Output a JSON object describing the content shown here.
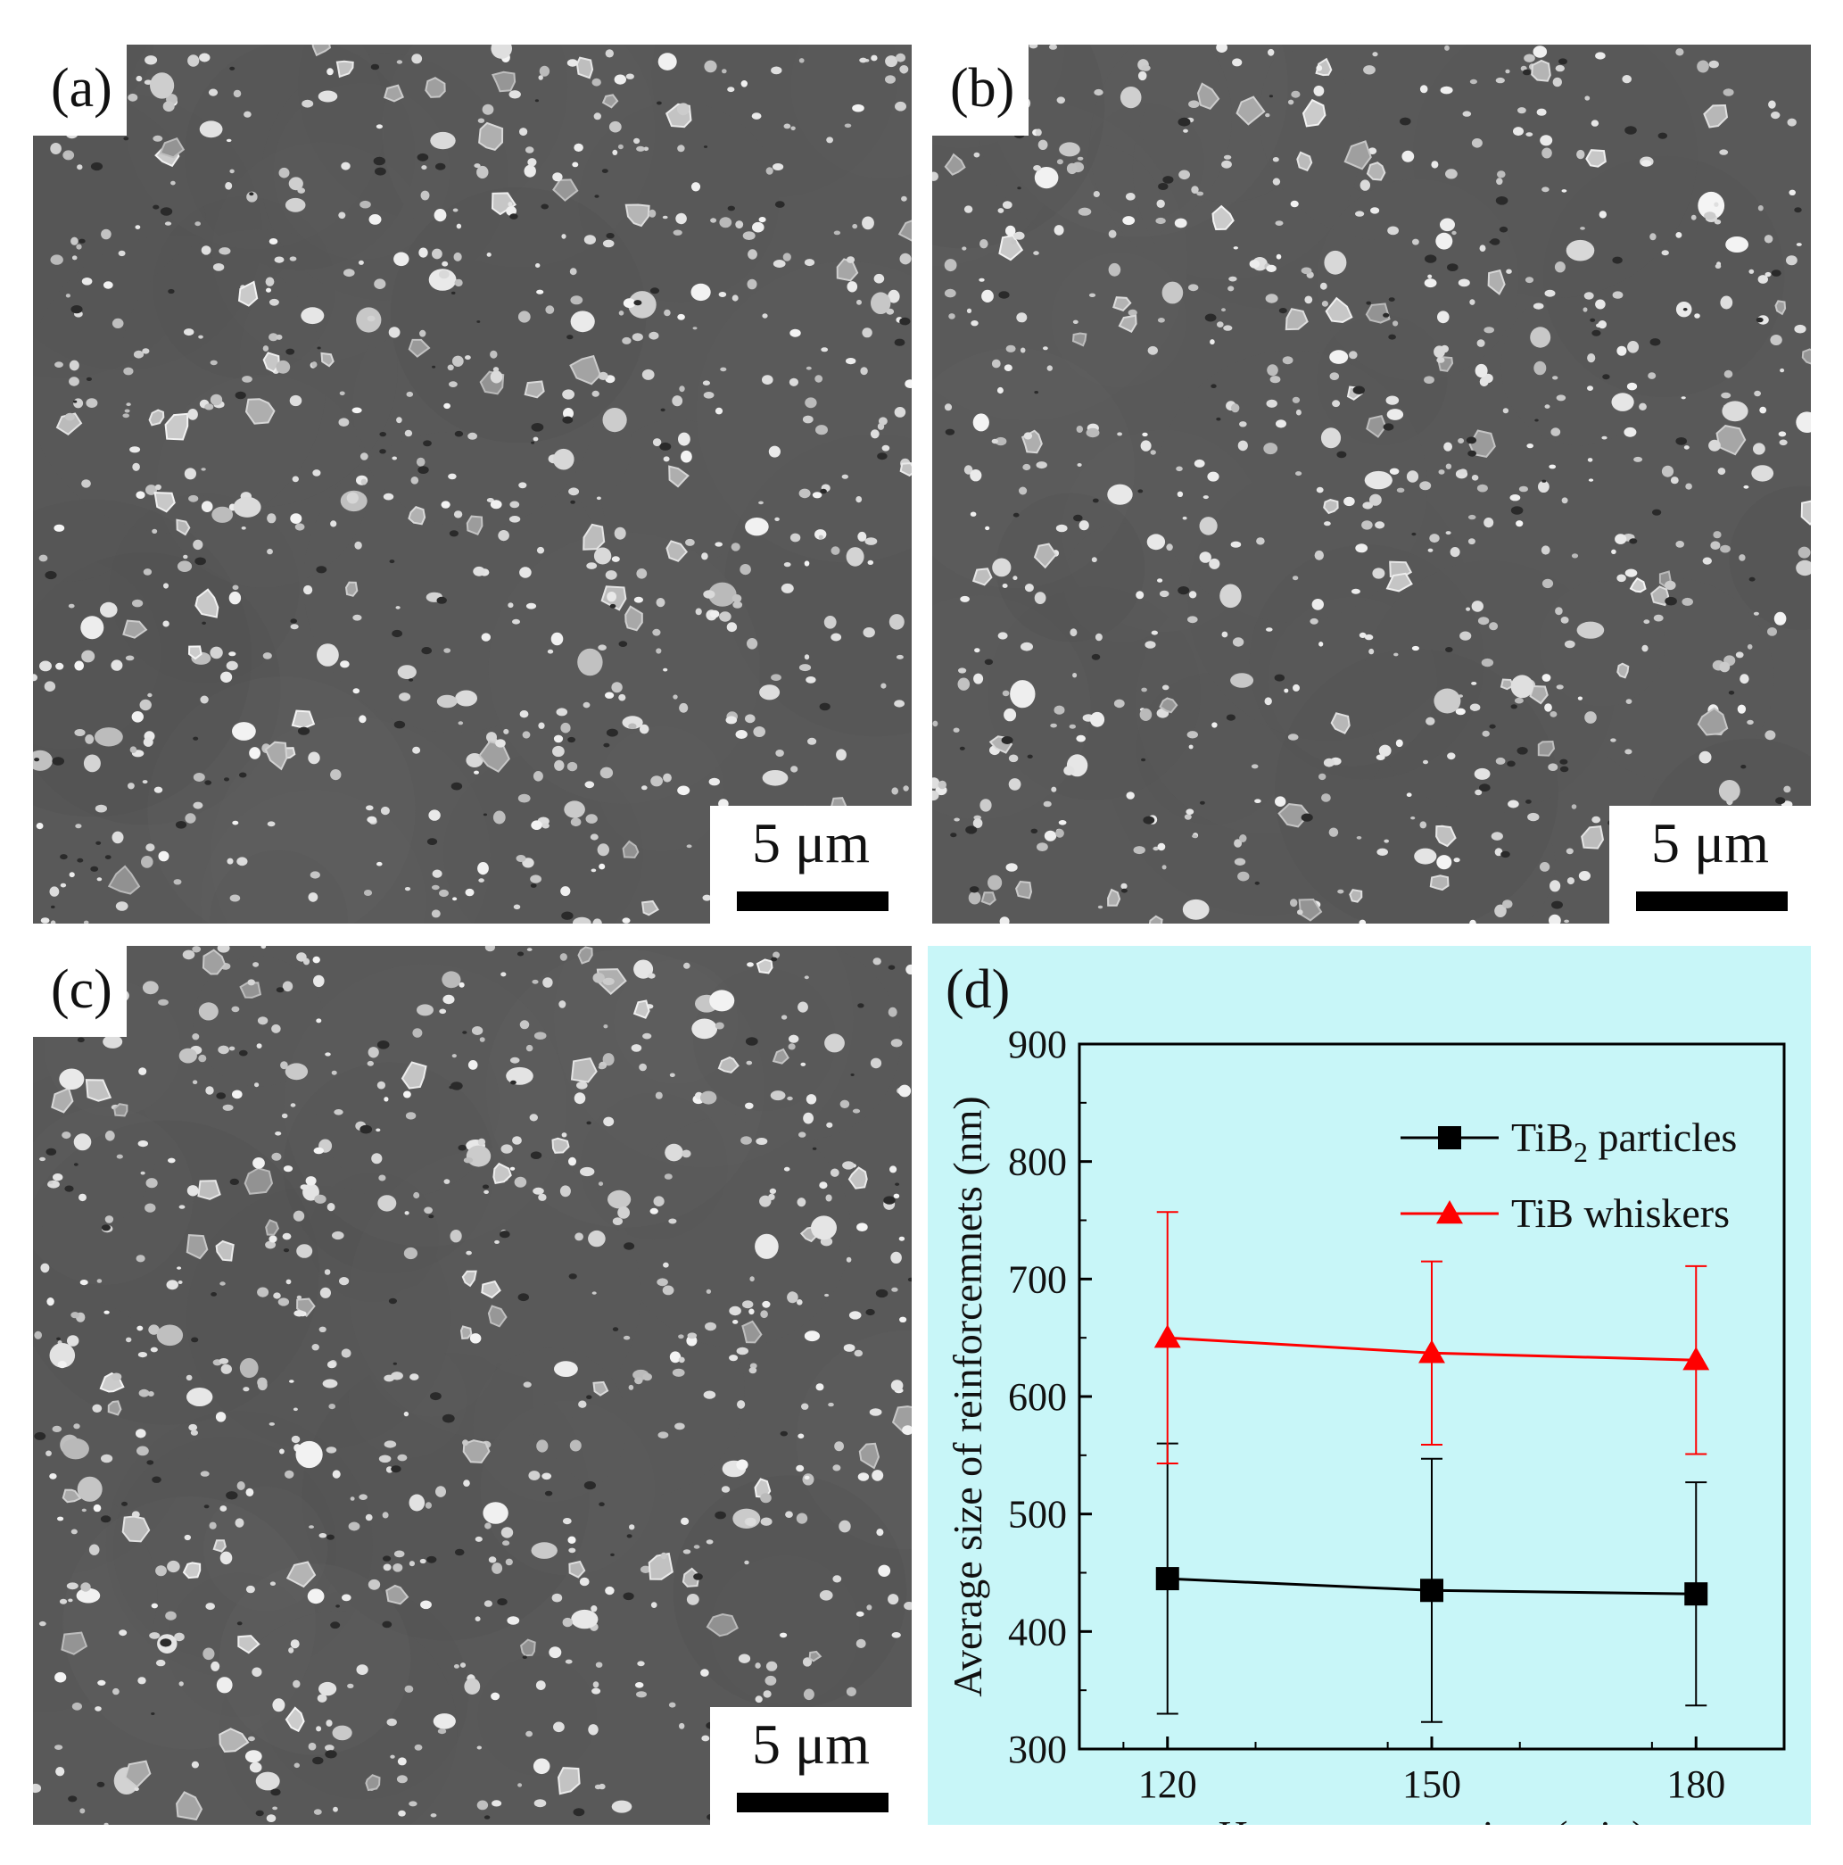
{
  "panels": {
    "a": {
      "label": "(a)",
      "scale_text": "5 μm"
    },
    "b": {
      "label": "(b)",
      "scale_text": "5 μm"
    },
    "c": {
      "label": "(c)",
      "scale_text": "5 μm"
    },
    "d": {
      "label": "(d)"
    }
  },
  "chart_data": {
    "type": "line",
    "xlabel": "Heat treatment time (min)",
    "ylabel": "Average size of reinforcemnets (nm)",
    "x": [
      120,
      150,
      180
    ],
    "x_ticks": [
      "120",
      "150",
      "180"
    ],
    "xlim": [
      110,
      190
    ],
    "y_ticks": [
      300,
      400,
      500,
      600,
      700,
      800,
      900
    ],
    "ylim": [
      300,
      900
    ],
    "grid": false,
    "legend_position": "top-right",
    "series": [
      {
        "name_main": "TiB",
        "name_sub": "2",
        "name_rest": " particles",
        "marker": "square",
        "color": "#000000",
        "values": [
          445,
          435,
          432
        ],
        "error": [
          115,
          112,
          95
        ]
      },
      {
        "name_main": "TiB whiskers",
        "name_sub": "",
        "name_rest": "",
        "marker": "triangle",
        "color": "#ff0000",
        "values": [
          650,
          637,
          631
        ],
        "error": [
          107,
          78,
          80
        ]
      }
    ]
  }
}
